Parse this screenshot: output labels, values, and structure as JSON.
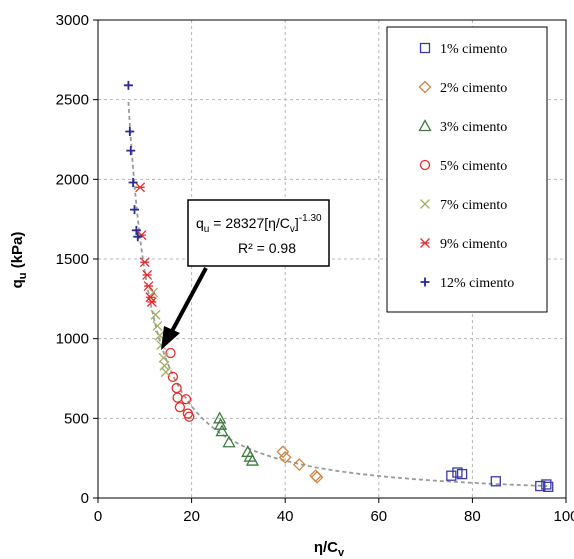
{
  "chart_data": {
    "type": "scatter",
    "xlabel": "η/C",
    "xlabel_sub": "v",
    "ylabel": "q",
    "ylabel_sub": "u",
    "ylabel_unit": " (kPa)",
    "xlim": [
      0,
      100
    ],
    "ylim": [
      0,
      3000
    ],
    "xticks": [
      0,
      20,
      40,
      60,
      80,
      100
    ],
    "yticks": [
      0,
      500,
      1000,
      1500,
      2000,
      2500,
      3000
    ],
    "grid": true,
    "legend_position": "top-right",
    "series": [
      {
        "name": "1% cimento",
        "marker": "square",
        "color": "#3a3aa0",
        "points": [
          [
            75.5,
            140
          ],
          [
            76.8,
            160
          ],
          [
            77.8,
            150
          ],
          [
            85,
            105
          ],
          [
            94.5,
            75
          ],
          [
            95.8,
            85
          ],
          [
            96.2,
            70
          ]
        ]
      },
      {
        "name": "2% cimento",
        "marker": "diamond",
        "color": "#c8864a",
        "points": [
          [
            39.5,
            290
          ],
          [
            40,
            255
          ],
          [
            43,
            210
          ],
          [
            46.5,
            140
          ],
          [
            46.8,
            130
          ]
        ]
      },
      {
        "name": "3% cimento",
        "marker": "triangle",
        "color": "#3f7a3f",
        "points": [
          [
            26,
            500
          ],
          [
            26.2,
            460
          ],
          [
            26.5,
            420
          ],
          [
            28,
            350
          ],
          [
            32,
            290
          ],
          [
            32.5,
            260
          ],
          [
            33,
            235
          ]
        ]
      },
      {
        "name": "5% cimento",
        "marker": "circle",
        "color": "#e03030",
        "points": [
          [
            15.5,
            910
          ],
          [
            16,
            760
          ],
          [
            16.8,
            690
          ],
          [
            17,
            630
          ],
          [
            17.5,
            570
          ],
          [
            18.8,
            620
          ],
          [
            19.2,
            530
          ],
          [
            19.5,
            510
          ]
        ]
      },
      {
        "name": "7% cimento",
        "marker": "x",
        "color": "#a4ad64",
        "points": [
          [
            11.8,
            1290
          ],
          [
            12.3,
            1150
          ],
          [
            12.7,
            1080
          ],
          [
            13.2,
            1020
          ],
          [
            13.5,
            960
          ],
          [
            14,
            880
          ],
          [
            14.2,
            830
          ],
          [
            14.5,
            790
          ]
        ]
      },
      {
        "name": "9% cimento",
        "marker": "asterisk",
        "color": "#e03030",
        "points": [
          [
            9,
            1950
          ],
          [
            9.3,
            1650
          ],
          [
            10,
            1480
          ],
          [
            10.5,
            1400
          ],
          [
            10.8,
            1330
          ],
          [
            11.2,
            1260
          ],
          [
            11.5,
            1230
          ]
        ]
      },
      {
        "name": "12% cimento",
        "marker": "plus",
        "color": "#2a2a90",
        "points": [
          [
            6.5,
            2590
          ],
          [
            6.8,
            2300
          ],
          [
            7,
            2180
          ],
          [
            7.5,
            1980
          ],
          [
            7.8,
            1810
          ],
          [
            8.2,
            1680
          ],
          [
            8.5,
            1640
          ]
        ]
      }
    ],
    "fit_curve": {
      "a": 28327,
      "b": -1.3,
      "x_from": 6.5,
      "x_to": 96
    },
    "annotation": {
      "line1": "q",
      "line1_sub": "u",
      "line1_mid": " = 28327[η/C",
      "line1_sub2": "v",
      "line1_end": "]",
      "line1_sup": "-1.30",
      "line2": "R² = 0.98"
    }
  }
}
